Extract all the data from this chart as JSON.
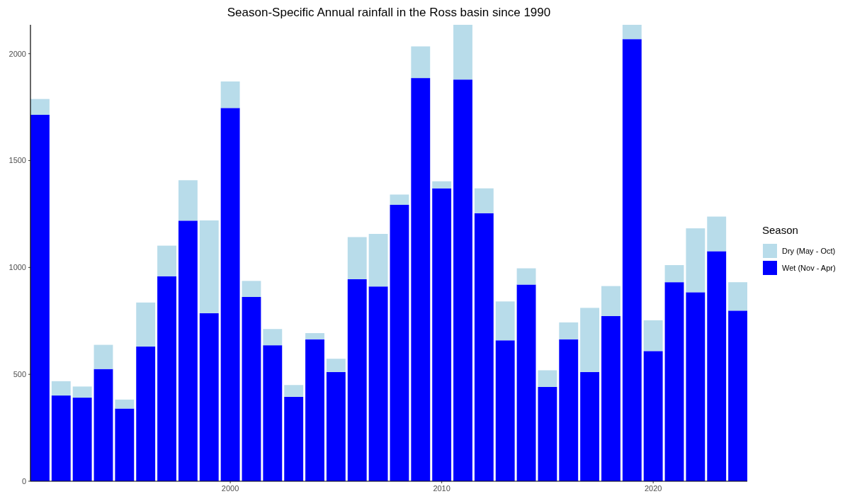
{
  "chart_data": {
    "type": "bar",
    "title": "Season-Specific Annual rainfall in the Ross basin since 1990",
    "stacked": true,
    "legend_title": "Season",
    "legend": "right",
    "grid": false,
    "x": [
      1991,
      1992,
      1993,
      1994,
      1995,
      1996,
      1997,
      1998,
      1999,
      2000,
      2001,
      2002,
      2003,
      2004,
      2005,
      2006,
      2007,
      2008,
      2009,
      2010,
      2011,
      2012,
      2013,
      2014,
      2015,
      2016,
      2017,
      2018,
      2019,
      2020,
      2021,
      2022,
      2023,
      2024
    ],
    "xlim": [
      1990.55,
      2024.45
    ],
    "xticks": [
      2000,
      2010,
      2020
    ],
    "ylim": [
      0,
      2135
    ],
    "yticks": [
      0,
      500,
      1000,
      1500,
      2000
    ],
    "series": [
      {
        "name": "Wet (Nov - Apr)",
        "color": "#0000ff",
        "values": [
          1714,
          401,
          391,
          525,
          340,
          630,
          959,
          1219,
          786,
          1746,
          862,
          636,
          395,
          664,
          511,
          945,
          911,
          1293,
          1886,
          1370,
          1879,
          1254,
          659,
          920,
          441,
          664,
          511,
          773,
          2068,
          609,
          931,
          884,
          1076,
          798
        ]
      },
      {
        "name": "Dry (May - Oct)",
        "color": "#b8dcea",
        "values": [
          74,
          67,
          52,
          113,
          42,
          206,
          143,
          189,
          434,
          124,
          75,
          76,
          55,
          29,
          62,
          197,
          246,
          48,
          148,
          33,
          256,
          116,
          182,
          76,
          78,
          79,
          300,
          140,
          67,
          144,
          80,
          299,
          162,
          133
        ]
      }
    ]
  }
}
